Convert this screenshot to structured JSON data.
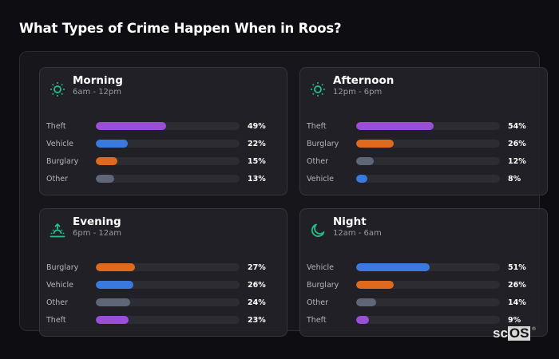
{
  "title": "What Types of Crime Happen When in Roos?",
  "colors": {
    "Theft": "#9b4fd8",
    "Vehicle": "#3a7adf",
    "Burglary": "#df6a1e",
    "Other": "#5e6677",
    "icon_accent": "#22c08a"
  },
  "cards": [
    {
      "name": "Morning",
      "time": "6am - 12pm",
      "icon": "sun-icon",
      "rows": [
        {
          "label": "Theft",
          "value": 49,
          "display": "49%"
        },
        {
          "label": "Vehicle",
          "value": 22,
          "display": "22%"
        },
        {
          "label": "Burglary",
          "value": 15,
          "display": "15%"
        },
        {
          "label": "Other",
          "value": 13,
          "display": "13%"
        }
      ]
    },
    {
      "name": "Afternoon",
      "time": "12pm - 6pm",
      "icon": "sun-icon",
      "rows": [
        {
          "label": "Theft",
          "value": 54,
          "display": "54%"
        },
        {
          "label": "Burglary",
          "value": 26,
          "display": "26%"
        },
        {
          "label": "Other",
          "value": 12,
          "display": "12%"
        },
        {
          "label": "Vehicle",
          "value": 8,
          "display": "8%"
        }
      ]
    },
    {
      "name": "Evening",
      "time": "6pm - 12am",
      "icon": "sunset-icon",
      "rows": [
        {
          "label": "Burglary",
          "value": 27,
          "display": "27%"
        },
        {
          "label": "Vehicle",
          "value": 26,
          "display": "26%"
        },
        {
          "label": "Other",
          "value": 24,
          "display": "24%"
        },
        {
          "label": "Theft",
          "value": 23,
          "display": "23%"
        }
      ]
    },
    {
      "name": "Night",
      "time": "12am - 6am",
      "icon": "moon-icon",
      "rows": [
        {
          "label": "Vehicle",
          "value": 51,
          "display": "51%"
        },
        {
          "label": "Burglary",
          "value": 26,
          "display": "26%"
        },
        {
          "label": "Other",
          "value": 14,
          "display": "14%"
        },
        {
          "label": "Theft",
          "value": 9,
          "display": "9%"
        }
      ]
    }
  ],
  "logo": {
    "part1": "sc",
    "part2": "OS",
    "reg": "®"
  },
  "chart_data": {
    "type": "bar",
    "title": "What Types of Crime Happen When in Roos?",
    "orientation": "horizontal",
    "panels": [
      {
        "title": "Morning",
        "subtitle": "6am - 12pm",
        "categories": [
          "Theft",
          "Vehicle",
          "Burglary",
          "Other"
        ],
        "values": [
          49,
          22,
          15,
          13
        ]
      },
      {
        "title": "Afternoon",
        "subtitle": "12pm - 6pm",
        "categories": [
          "Theft",
          "Burglary",
          "Other",
          "Vehicle"
        ],
        "values": [
          54,
          26,
          12,
          8
        ]
      },
      {
        "title": "Evening",
        "subtitle": "6pm - 12am",
        "categories": [
          "Burglary",
          "Vehicle",
          "Other",
          "Theft"
        ],
        "values": [
          27,
          26,
          24,
          23
        ]
      },
      {
        "title": "Night",
        "subtitle": "12am - 6am",
        "categories": [
          "Vehicle",
          "Burglary",
          "Other",
          "Theft"
        ],
        "values": [
          51,
          26,
          14,
          9
        ]
      }
    ],
    "unit": "%",
    "xlim": [
      0,
      100
    ]
  }
}
